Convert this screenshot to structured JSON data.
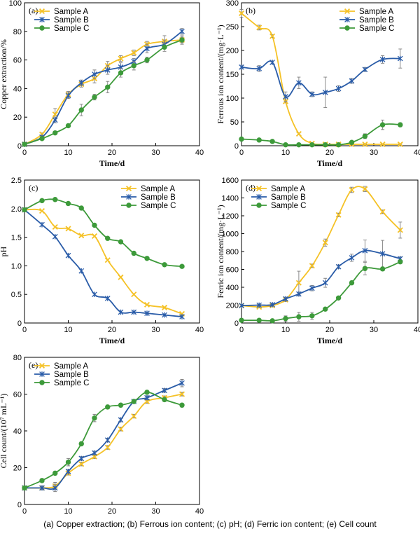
{
  "caption": "(a) Copper extraction; (b) Ferrous ion content;  (c)  pH;  (d)  Ferric  ion  content; (e) Cell count",
  "watermark": "",
  "colors": {
    "Sample A": "#f5c227",
    "Sample B": "#2a5ca8",
    "Sample C": "#3d9a3a",
    "axis": "#000000",
    "error": "#7f7f7f"
  },
  "chart_data": [
    {
      "id": "a",
      "type": "line",
      "panel_label": "(a)",
      "xlabel": "Time/d",
      "ylabel": "Copper extraction/%",
      "xlim": [
        0,
        40
      ],
      "ylim": [
        0,
        100
      ],
      "xticks": [
        0,
        10,
        20,
        30,
        40
      ],
      "yticks": [
        0,
        20,
        40,
        60,
        80,
        100
      ],
      "legend_position": "top-left",
      "series": [
        {
          "name": "Sample A",
          "marker": "x",
          "x": [
            0,
            4,
            7,
            10,
            13,
            16,
            19,
            22,
            25,
            28,
            32,
            36
          ],
          "y": [
            1,
            8,
            22,
            36,
            43,
            47,
            56,
            61,
            65,
            71,
            73,
            74
          ],
          "err": [
            0,
            1,
            4,
            2,
            2,
            3,
            3,
            2,
            2,
            2,
            4,
            3
          ]
        },
        {
          "name": "Sample B",
          "marker": "asterisk",
          "x": [
            0,
            4,
            7,
            10,
            13,
            16,
            19,
            22,
            25,
            28,
            32,
            36
          ],
          "y": [
            1,
            6,
            18,
            35,
            44,
            50,
            53,
            55,
            59,
            68,
            71,
            80
          ],
          "err": [
            0,
            1,
            2,
            2,
            2,
            3,
            3,
            3,
            2,
            3,
            3,
            2
          ]
        },
        {
          "name": "Sample C",
          "marker": "circle",
          "x": [
            0,
            4,
            7,
            10,
            13,
            16,
            19,
            22,
            25,
            28,
            32,
            36
          ],
          "y": [
            1,
            5,
            9,
            14,
            25,
            34,
            41,
            51,
            56,
            60,
            69,
            74
          ],
          "err": [
            0,
            1,
            1,
            1,
            4,
            2,
            4,
            3,
            3,
            2,
            3,
            2
          ]
        }
      ]
    },
    {
      "id": "b",
      "type": "line",
      "panel_label": "(b)",
      "xlabel": "Time/d",
      "ylabel": "Ferrous ion content/(mg·L⁻¹)",
      "xlim": [
        0,
        40
      ],
      "ylim": [
        0,
        300
      ],
      "xticks": [
        0,
        10,
        20,
        30,
        40
      ],
      "yticks": [
        0,
        50,
        100,
        150,
        200,
        250,
        300
      ],
      "legend_position": "top-right",
      "series": [
        {
          "name": "Sample A",
          "marker": "x",
          "x": [
            0,
            4,
            7,
            10,
            13,
            16,
            19,
            22,
            25,
            28,
            32,
            36
          ],
          "y": [
            278,
            248,
            230,
            93,
            25,
            5,
            3,
            3,
            3,
            3,
            3,
            3
          ],
          "err": [
            8,
            5,
            3,
            3,
            2,
            1,
            1,
            1,
            1,
            1,
            1,
            1
          ]
        },
        {
          "name": "Sample B",
          "marker": "asterisk",
          "x": [
            0,
            4,
            7,
            10,
            13,
            16,
            19,
            22,
            25,
            28,
            32,
            36
          ],
          "y": [
            165,
            162,
            175,
            103,
            132,
            108,
            112,
            120,
            136,
            160,
            181,
            183
          ],
          "err": [
            4,
            6,
            3,
            10,
            12,
            5,
            32,
            6,
            5,
            4,
            8,
            20
          ]
        },
        {
          "name": "Sample C",
          "marker": "circle",
          "x": [
            0,
            4,
            7,
            10,
            13,
            16,
            19,
            22,
            25,
            28,
            32,
            36
          ],
          "y": [
            14,
            12,
            9,
            2,
            2,
            2,
            2,
            2,
            7,
            20,
            44,
            44
          ],
          "err": [
            1,
            1,
            1,
            1,
            1,
            1,
            1,
            1,
            3,
            5,
            10,
            4
          ]
        }
      ]
    },
    {
      "id": "c",
      "type": "line",
      "panel_label": "(c)",
      "xlabel": "Time/d",
      "ylabel": "pH",
      "xlim": [
        0,
        40
      ],
      "ylim": [
        0,
        2.5
      ],
      "xticks": [
        0,
        10,
        20,
        30,
        40
      ],
      "yticks": [
        0,
        0.5,
        1.0,
        1.5,
        2.0,
        2.5
      ],
      "ytick_labels": [
        "0",
        "0.5",
        "1.0",
        "1.5",
        "2.0",
        "2.5"
      ],
      "legend_position": "top-right",
      "series": [
        {
          "name": "Sample A",
          "marker": "x",
          "x": [
            0,
            4,
            7,
            10,
            13,
            16,
            19,
            22,
            25,
            28,
            32,
            36
          ],
          "y": [
            1.98,
            1.96,
            1.68,
            1.65,
            1.53,
            1.52,
            1.1,
            0.8,
            0.5,
            0.32,
            0.27,
            0.16
          ],
          "err": [
            0,
            0,
            0,
            0,
            0,
            0,
            0,
            0,
            0,
            0,
            0,
            0
          ]
        },
        {
          "name": "Sample B",
          "marker": "asterisk",
          "x": [
            0,
            4,
            7,
            10,
            13,
            16,
            19,
            22,
            25,
            28,
            32,
            36
          ],
          "y": [
            1.98,
            1.72,
            1.51,
            1.18,
            0.91,
            0.5,
            0.43,
            0.19,
            0.19,
            0.17,
            0.14,
            0.11
          ],
          "err": [
            0,
            0,
            0,
            0,
            0,
            0,
            0,
            0,
            0,
            0,
            0,
            0
          ]
        },
        {
          "name": "Sample C",
          "marker": "circle",
          "x": [
            0,
            4,
            7,
            10,
            13,
            16,
            19,
            22,
            25,
            28,
            32,
            36
          ],
          "y": [
            1.98,
            2.14,
            2.16,
            2.09,
            2.01,
            1.71,
            1.48,
            1.42,
            1.22,
            1.13,
            1.02,
            0.99
          ],
          "err": [
            0,
            0,
            0,
            0,
            0,
            0,
            0,
            0,
            0,
            0,
            0,
            0
          ]
        }
      ]
    },
    {
      "id": "d",
      "type": "line",
      "panel_label": "(d)",
      "xlabel": "Time/d",
      "ylabel": "Ferric ion content/(mg·L⁻¹)",
      "xlim": [
        0,
        40
      ],
      "ylim": [
        0,
        1600
      ],
      "xticks": [
        0,
        10,
        20,
        30,
        40
      ],
      "yticks": [
        0,
        200,
        400,
        600,
        800,
        1000,
        1200,
        1400,
        1600
      ],
      "legend_position": "top-left",
      "series": [
        {
          "name": "Sample A",
          "marker": "x",
          "x": [
            0,
            4,
            7,
            10,
            13,
            16,
            19,
            22,
            25,
            28,
            32,
            36
          ],
          "y": [
            195,
            180,
            195,
            260,
            450,
            640,
            900,
            1210,
            1490,
            1500,
            1245,
            1040
          ],
          "err": [
            10,
            10,
            15,
            20,
            130,
            20,
            40,
            20,
            30,
            30,
            20,
            90
          ]
        },
        {
          "name": "Sample B",
          "marker": "asterisk",
          "x": [
            0,
            4,
            7,
            10,
            13,
            16,
            19,
            22,
            25,
            28,
            32,
            36
          ],
          "y": [
            195,
            200,
            205,
            270,
            325,
            390,
            450,
            630,
            730,
            810,
            775,
            720
          ],
          "err": [
            10,
            10,
            15,
            20,
            20,
            30,
            50,
            20,
            40,
            120,
            150,
            20
          ]
        },
        {
          "name": "Sample C",
          "marker": "circle",
          "x": [
            0,
            4,
            7,
            10,
            13,
            16,
            19,
            22,
            25,
            28,
            32,
            36
          ],
          "y": [
            30,
            30,
            25,
            50,
            70,
            80,
            155,
            280,
            450,
            610,
            605,
            685
          ],
          "err": [
            5,
            5,
            5,
            30,
            50,
            40,
            10,
            15,
            20,
            70,
            20,
            20
          ]
        }
      ]
    },
    {
      "id": "e",
      "type": "line",
      "panel_label": "(e)",
      "xlabel": "Time/d",
      "ylabel": "Cell count/(10⁷ mL⁻¹)",
      "xlim": [
        0,
        40
      ],
      "ylim": [
        0,
        80
      ],
      "xticks": [
        0,
        10,
        20,
        30,
        40
      ],
      "yticks": [
        0,
        20,
        40,
        60,
        80
      ],
      "legend_position": "top-left",
      "series": [
        {
          "name": "Sample A",
          "marker": "x",
          "x": [
            0,
            4,
            7,
            10,
            13,
            16,
            19,
            22,
            25,
            28,
            32,
            36
          ],
          "y": [
            9,
            9,
            10,
            17,
            22,
            26,
            31,
            41,
            48,
            56,
            58,
            60
          ],
          "err": [
            0,
            1,
            2,
            1,
            1,
            1,
            1,
            1,
            1,
            1,
            1,
            1
          ]
        },
        {
          "name": "Sample B",
          "marker": "asterisk",
          "x": [
            0,
            4,
            7,
            10,
            13,
            16,
            19,
            22,
            25,
            28,
            32,
            36
          ],
          "y": [
            9,
            9,
            9,
            18,
            25,
            28,
            35,
            46,
            56,
            58,
            62,
            66
          ],
          "err": [
            0,
            1,
            2,
            1,
            1,
            1,
            1,
            1,
            1,
            1,
            1,
            2
          ]
        },
        {
          "name": "Sample C",
          "marker": "circle",
          "x": [
            0,
            4,
            7,
            10,
            13,
            16,
            19,
            22,
            25,
            28,
            32,
            36
          ],
          "y": [
            9,
            13,
            17,
            23,
            33,
            47,
            53,
            54,
            56,
            61,
            57,
            54
          ],
          "err": [
            0,
            1,
            1,
            2,
            1,
            2,
            1,
            1,
            1,
            1,
            1,
            1
          ]
        }
      ]
    }
  ]
}
